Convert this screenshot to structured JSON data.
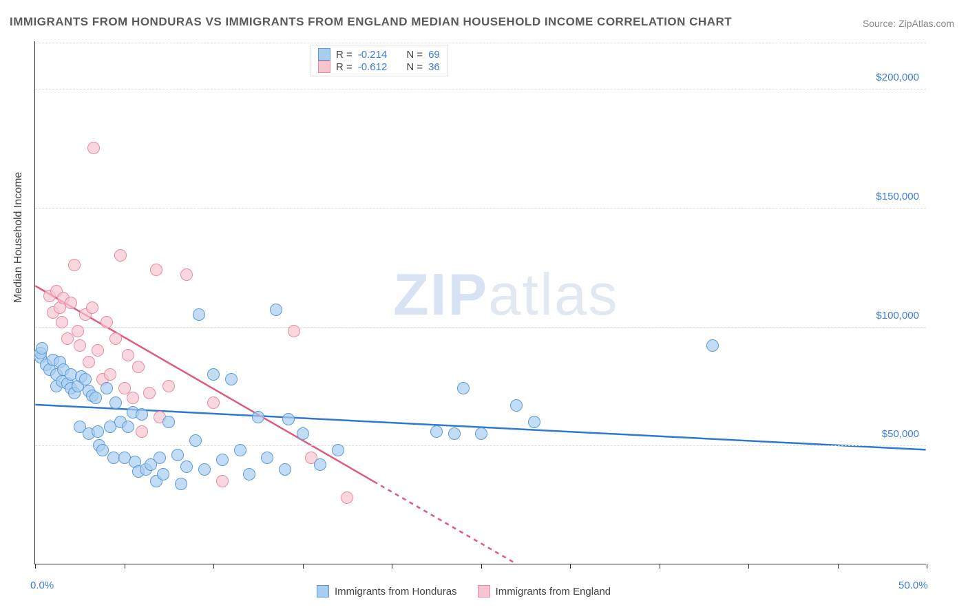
{
  "title": "IMMIGRANTS FROM HONDURAS VS IMMIGRANTS FROM ENGLAND MEDIAN HOUSEHOLD INCOME CORRELATION CHART",
  "source_prefix": "Source: ",
  "source": "ZipAtlas.com",
  "ylabel": "Median Household Income",
  "watermark_bold": "ZIP",
  "watermark_thin": "atlas",
  "chart": {
    "type": "scatter",
    "xlim": [
      0,
      50
    ],
    "ylim": [
      0,
      220000
    ],
    "background": "#ffffff",
    "grid_color": "#dddddd",
    "axis_color": "#333333",
    "point_radius": 9,
    "x_ticks_pct": [
      0,
      5,
      10,
      15,
      20,
      25,
      30,
      35,
      40,
      45,
      50
    ],
    "x_tick_labels": {
      "0": "0.0%",
      "50": "50.0%"
    },
    "y_ticks": [
      {
        "v": 50000,
        "label": "$50,000"
      },
      {
        "v": 100000,
        "label": "$100,000"
      },
      {
        "v": 150000,
        "label": "$150,000"
      },
      {
        "v": 200000,
        "label": "$200,000"
      }
    ]
  },
  "series": {
    "honduras": {
      "label": "Immigrants from Honduras",
      "fill": "#a8cdf0",
      "stroke": "#5a9bd4",
      "trend_color": "#2e78d0",
      "R": "-0.214",
      "N": "69",
      "trend": {
        "x1": 0,
        "y1": 67000,
        "x2": 50,
        "y2": 48000,
        "dash": false
      },
      "points": [
        [
          0.3,
          87000
        ],
        [
          0.3,
          89000
        ],
        [
          0.6,
          84000
        ],
        [
          0.8,
          82000
        ],
        [
          1.0,
          86000
        ],
        [
          1.2,
          80000
        ],
        [
          1.2,
          75000
        ],
        [
          1.4,
          85000
        ],
        [
          1.5,
          77000
        ],
        [
          1.6,
          82000
        ],
        [
          1.8,
          76000
        ],
        [
          2.0,
          74000
        ],
        [
          2.0,
          80000
        ],
        [
          2.2,
          72000
        ],
        [
          2.4,
          75000
        ],
        [
          2.5,
          58000
        ],
        [
          2.6,
          79000
        ],
        [
          2.8,
          78000
        ],
        [
          3.0,
          73000
        ],
        [
          3.0,
          55000
        ],
        [
          3.2,
          71000
        ],
        [
          3.4,
          70000
        ],
        [
          3.5,
          56000
        ],
        [
          3.6,
          50000
        ],
        [
          3.8,
          48000
        ],
        [
          4.0,
          74000
        ],
        [
          4.2,
          58000
        ],
        [
          4.4,
          45000
        ],
        [
          4.5,
          68000
        ],
        [
          4.8,
          60000
        ],
        [
          5.0,
          45000
        ],
        [
          5.2,
          58000
        ],
        [
          5.5,
          64000
        ],
        [
          5.6,
          43000
        ],
        [
          5.8,
          39000
        ],
        [
          6.0,
          63000
        ],
        [
          6.2,
          40000
        ],
        [
          6.5,
          42000
        ],
        [
          6.8,
          35000
        ],
        [
          7.0,
          45000
        ],
        [
          7.2,
          38000
        ],
        [
          7.5,
          60000
        ],
        [
          8.0,
          46000
        ],
        [
          8.2,
          34000
        ],
        [
          8.5,
          41000
        ],
        [
          9.0,
          52000
        ],
        [
          9.2,
          105000
        ],
        [
          9.5,
          40000
        ],
        [
          10.0,
          80000
        ],
        [
          10.5,
          44000
        ],
        [
          11.0,
          78000
        ],
        [
          11.5,
          48000
        ],
        [
          12.0,
          38000
        ],
        [
          12.5,
          62000
        ],
        [
          13.0,
          45000
        ],
        [
          13.5,
          107000
        ],
        [
          14.0,
          40000
        ],
        [
          14.2,
          61000
        ],
        [
          15.0,
          55000
        ],
        [
          16.0,
          42000
        ],
        [
          17.0,
          48000
        ],
        [
          22.5,
          56000
        ],
        [
          23.5,
          55000
        ],
        [
          24.0,
          74000
        ],
        [
          25.0,
          55000
        ],
        [
          27.0,
          67000
        ],
        [
          28.0,
          60000
        ],
        [
          38.0,
          92000
        ],
        [
          0.4,
          91000
        ]
      ]
    },
    "england": {
      "label": "Immigrants from England",
      "fill": "#f7c5cf",
      "stroke": "#e88aa0",
      "trend_color": "#e05a7b",
      "R": "-0.612",
      "N": "36",
      "trend": {
        "x1": 0,
        "y1": 117000,
        "x2": 27,
        "y2": 0,
        "dash_after_x": 19
      },
      "points": [
        [
          0.8,
          113000
        ],
        [
          1.0,
          106000
        ],
        [
          1.2,
          115000
        ],
        [
          1.4,
          108000
        ],
        [
          1.5,
          102000
        ],
        [
          1.6,
          112000
        ],
        [
          1.8,
          95000
        ],
        [
          2.0,
          110000
        ],
        [
          2.2,
          126000
        ],
        [
          2.4,
          98000
        ],
        [
          2.5,
          92000
        ],
        [
          2.8,
          105000
        ],
        [
          3.0,
          85000
        ],
        [
          3.2,
          108000
        ],
        [
          3.3,
          175000
        ],
        [
          3.5,
          90000
        ],
        [
          3.8,
          78000
        ],
        [
          4.0,
          102000
        ],
        [
          4.2,
          80000
        ],
        [
          4.5,
          95000
        ],
        [
          4.8,
          130000
        ],
        [
          5.0,
          74000
        ],
        [
          5.2,
          88000
        ],
        [
          5.5,
          70000
        ],
        [
          5.8,
          83000
        ],
        [
          6.0,
          56000
        ],
        [
          6.4,
          72000
        ],
        [
          6.8,
          124000
        ],
        [
          7.0,
          62000
        ],
        [
          7.5,
          75000
        ],
        [
          8.5,
          122000
        ],
        [
          10.0,
          68000
        ],
        [
          10.5,
          35000
        ],
        [
          14.5,
          98000
        ],
        [
          15.5,
          45000
        ],
        [
          17.5,
          28000
        ]
      ]
    }
  },
  "legend_top": {
    "R_label": "R = ",
    "N_label": "N = "
  }
}
